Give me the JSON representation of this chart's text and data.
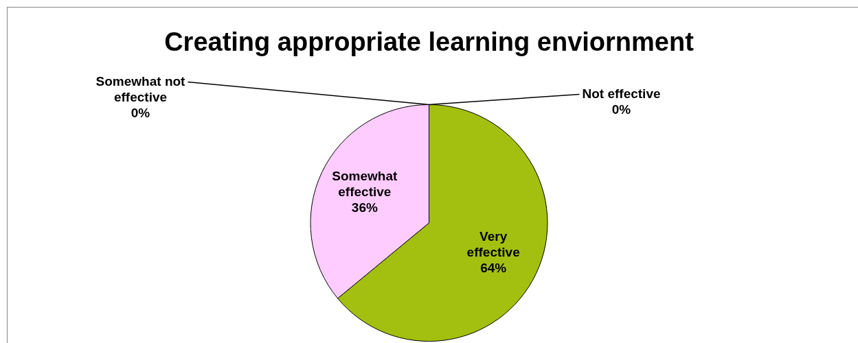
{
  "chart_data": {
    "type": "pie",
    "title": "Creating appropriate learning enviornment",
    "categories": [
      "Very effective",
      "Somewhat effective",
      "Somewhat not effective",
      "Not effective"
    ],
    "values": [
      64,
      36,
      0,
      0
    ],
    "colors": [
      "#a3c010",
      "#ffccff",
      "#4f81bd",
      "#c0504d"
    ],
    "value_labels": [
      "64%",
      "36%",
      "0%",
      "0%"
    ],
    "legend": false
  }
}
